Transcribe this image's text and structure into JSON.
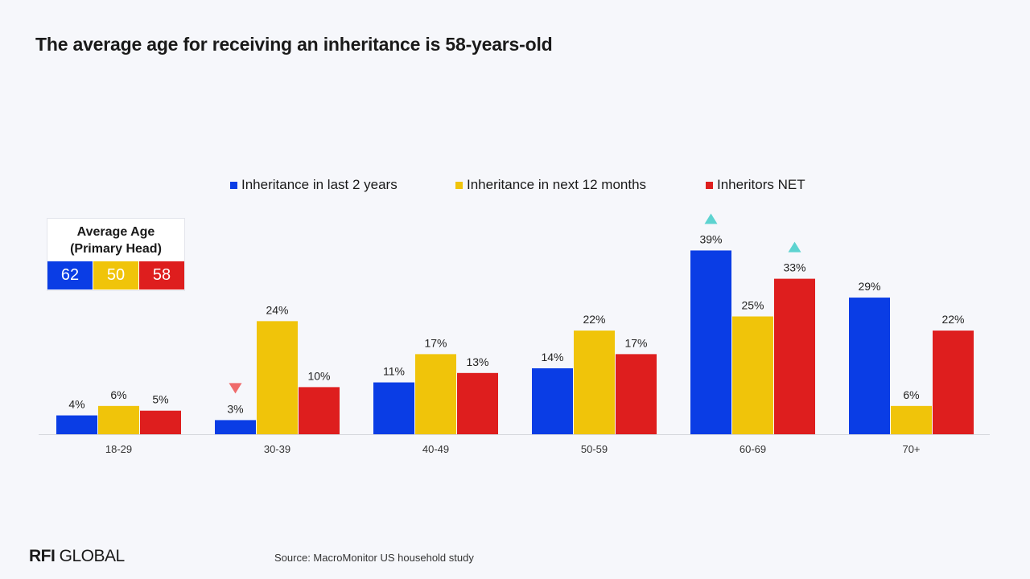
{
  "title": "The average age for receiving an inheritance is 58-years-old",
  "colors": {
    "series1": "#0a3de5",
    "series2": "#f0c40a",
    "series3": "#de1e1e",
    "up_marker": "#5dd3d0",
    "down_marker": "#ef6b6b"
  },
  "average_age": {
    "title_line1": "Average Age",
    "title_line2": "(Primary Head)",
    "values": [
      "62",
      "50",
      "58"
    ]
  },
  "chart_data": {
    "type": "bar",
    "categories": [
      "18-29",
      "30-39",
      "40-49",
      "50-59",
      "60-69",
      "70+"
    ],
    "series": [
      {
        "name": "Inheritance in last 2 years",
        "values": [
          4,
          3,
          11,
          14,
          39,
          29
        ],
        "labels": [
          "4%",
          "3%",
          "11%",
          "14%",
          "39%",
          "29%"
        ]
      },
      {
        "name": "Inheritance in next 12 months",
        "values": [
          6,
          24,
          17,
          22,
          25,
          6
        ],
        "labels": [
          "6%",
          "24%",
          "17%",
          "22%",
          "25%",
          "6%"
        ]
      },
      {
        "name": "Inheritors NET",
        "values": [
          5,
          10,
          13,
          17,
          33,
          22
        ],
        "labels": [
          "5%",
          "10%",
          "13%",
          "17%",
          "33%",
          "22%"
        ]
      }
    ],
    "markers": [
      {
        "category": "30-39",
        "series": 0,
        "direction": "down"
      },
      {
        "category": "60-69",
        "series": 0,
        "direction": "up"
      },
      {
        "category": "60-69",
        "series": 2,
        "direction": "up"
      }
    ],
    "legend_position": "top-center",
    "grid": false
  },
  "footer": {
    "logo_bold": "RFI",
    "logo_rest": "GLOBAL",
    "source": "Source: MacroMonitor US household study"
  }
}
